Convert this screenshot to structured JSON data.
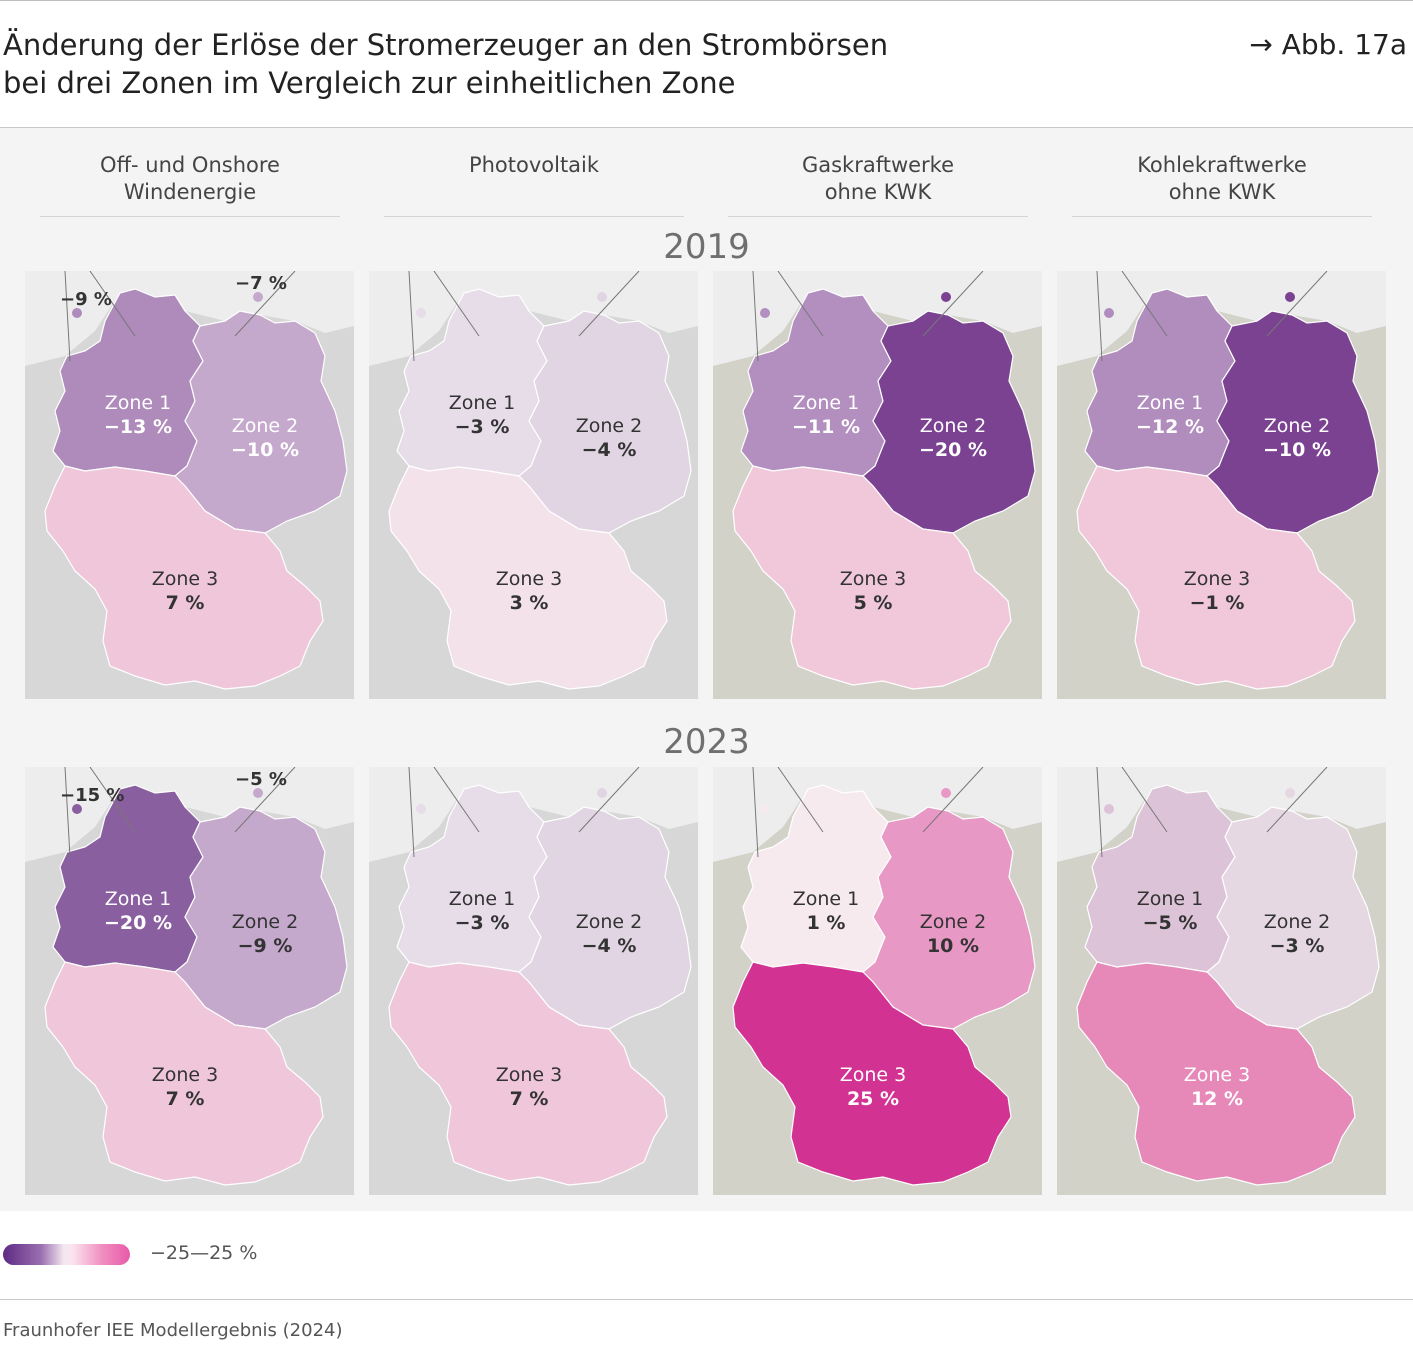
{
  "title": {
    "line1": "Änderung der Erlöse der Stromerzeuger an den Strombörsen",
    "line2": "bei drei Zonen im Vergleich zur einheitlichen Zone"
  },
  "figure_ref": "→ Abb. 17a",
  "columns": [
    {
      "line1": "Off- und Onshore",
      "line2": "Windenergie"
    },
    {
      "line1": "Photovoltaik",
      "line2": ""
    },
    {
      "line1": "Gaskraftwerke",
      "line2": "ohne KWK"
    },
    {
      "line1": "Kohlekraftwerke",
      "line2": "ohne KWK"
    }
  ],
  "years": [
    "2019",
    "2023"
  ],
  "zone_names": [
    "Zone 1",
    "Zone 2",
    "Zone 3"
  ],
  "maps": [
    {
      "year": "2019",
      "technology": "Off- und Onshore Windenergie",
      "zones": [
        "−13 %",
        "−10 %",
        "7 %"
      ],
      "zone_values": [
        -13,
        -10,
        7
      ],
      "island_labels": [
        "−9 %",
        "−7 %"
      ],
      "island_values": [
        -9,
        -7
      ],
      "colors": [
        "#ae8bbb",
        "#c4a9cc",
        "#efc6da"
      ]
    },
    {
      "year": "2019",
      "technology": "Photovoltaik",
      "zones": [
        "−3 %",
        "−4 %",
        "3 %"
      ],
      "zone_values": [
        -3,
        -4,
        3
      ],
      "island_labels": [],
      "island_values": [
        -3,
        -4
      ],
      "colors": [
        "#e6dde8",
        "#e1d5e3",
        "#f4e2ea"
      ]
    },
    {
      "year": "2019",
      "technology": "Gaskraftwerke ohne KWK",
      "zones": [
        "−11 %",
        "−20 %",
        "5 %"
      ],
      "zone_values": [
        -11,
        -20,
        5
      ],
      "island_labels": [],
      "island_values": [
        -11,
        -20
      ],
      "colors": [
        "#b28fbf",
        "#7a4291",
        "#f1c8da"
      ]
    },
    {
      "year": "2019",
      "technology": "Kohlekraftwerke ohne KWK",
      "zones": [
        "−12 %",
        "−10 %",
        "−1 %"
      ],
      "zone_values": [
        -12,
        -10,
        -1
      ],
      "island_labels": [],
      "island_values": [
        -12,
        -10
      ],
      "colors": [
        "#b08dbd",
        "#7a4291",
        "#f0c8d9"
      ]
    },
    {
      "year": "2023",
      "technology": "Off- und Onshore Windenergie",
      "zones": [
        "−20 %",
        "−9 %",
        "7 %"
      ],
      "zone_values": [
        -20,
        -9,
        7
      ],
      "island_labels": [
        "−15 %",
        "−5 %"
      ],
      "island_values": [
        -15,
        -5
      ],
      "colors": [
        "#8a5fa0",
        "#c4a9cc",
        "#efc6da"
      ]
    },
    {
      "year": "2023",
      "technology": "Photovoltaik",
      "zones": [
        "−3 %",
        "−4 %",
        "7 %"
      ],
      "zone_values": [
        -3,
        -4,
        7
      ],
      "island_labels": [],
      "island_values": [
        -3,
        -4
      ],
      "colors": [
        "#e6dde8",
        "#e1d5e3",
        "#efc6da"
      ]
    },
    {
      "year": "2023",
      "technology": "Gaskraftwerke ohne KWK",
      "zones": [
        "1 %",
        "10 %",
        "25 %"
      ],
      "zone_values": [
        1,
        10,
        25
      ],
      "island_labels": [],
      "island_values": [
        1,
        10
      ],
      "colors": [
        "#f6eaef",
        "#e898c4",
        "#d23292"
      ]
    },
    {
      "year": "2023",
      "technology": "Kohlekraftwerke ohne KWK",
      "zones": [
        "−5 %",
        "−3 %",
        "12 %"
      ],
      "zone_values": [
        -5,
        -3,
        12
      ],
      "island_labels": [],
      "island_values": [
        -5,
        -3
      ],
      "colors": [
        "#dcc3d8",
        "#e6d8e3",
        "#e689b8"
      ]
    }
  ],
  "legend": {
    "label": "−25—25 %",
    "min": -25,
    "max": 25
  },
  "source": "Fraunhofer IEE Modellergebnis (2024)"
}
